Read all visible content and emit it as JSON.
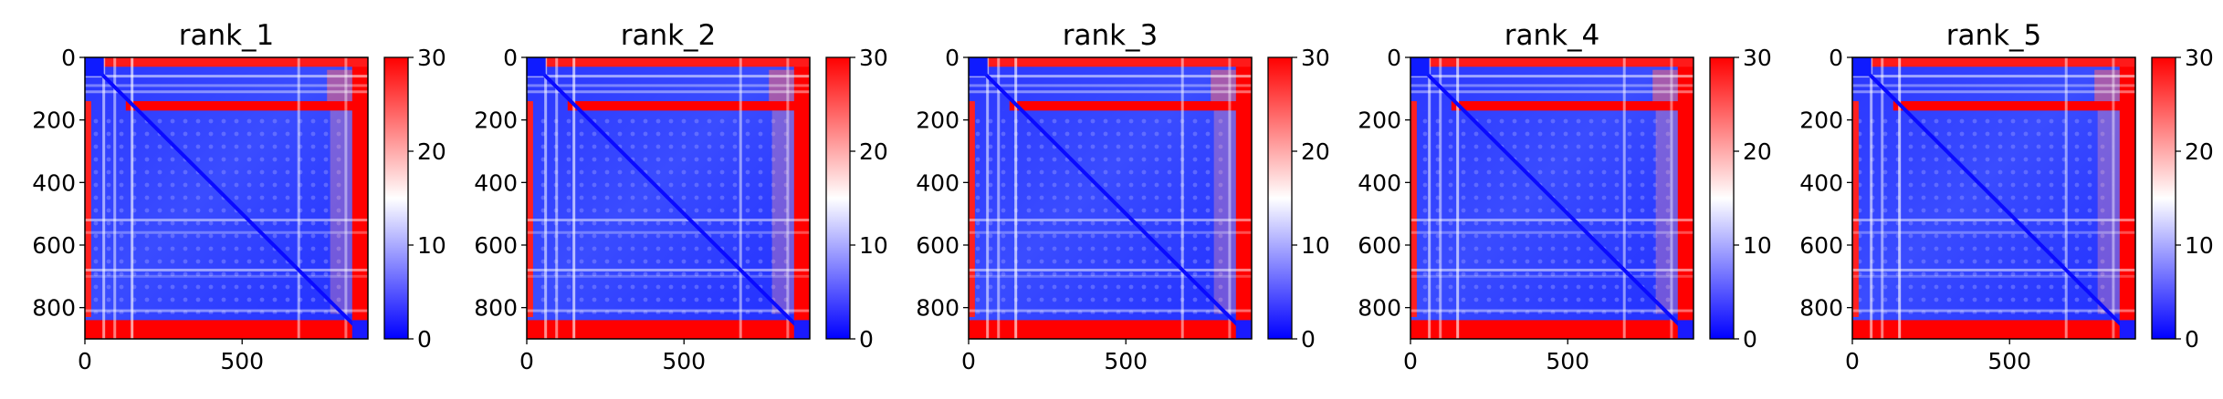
{
  "chart_data": {
    "type": "heatmap",
    "colormap": {
      "name": "bwr",
      "colors": [
        "#0000ff",
        "#ffffff",
        "#ff0000"
      ]
    },
    "x_ticks": [
      "0",
      "500"
    ],
    "y_ticks": [
      "0",
      "200",
      "400",
      "600",
      "800"
    ],
    "colorbar_ticks": [
      "0",
      "10",
      "20",
      "30"
    ],
    "panels": [
      {
        "title": "rank_1",
        "xlim": [
          0,
          900
        ],
        "ylim": [
          900,
          0
        ],
        "clim": [
          0,
          30
        ]
      },
      {
        "title": "rank_2",
        "xlim": [
          0,
          900
        ],
        "ylim": [
          900,
          0
        ],
        "clim": [
          0,
          30
        ]
      },
      {
        "title": "rank_3",
        "xlim": [
          0,
          900
        ],
        "ylim": [
          900,
          0
        ],
        "clim": [
          0,
          30
        ]
      },
      {
        "title": "rank_4",
        "xlim": [
          0,
          900
        ],
        "ylim": [
          900,
          0
        ],
        "clim": [
          0,
          30
        ]
      },
      {
        "title": "rank_5",
        "xlim": [
          0,
          900
        ],
        "ylim": [
          900,
          0
        ],
        "clim": [
          0,
          30
        ]
      }
    ]
  }
}
